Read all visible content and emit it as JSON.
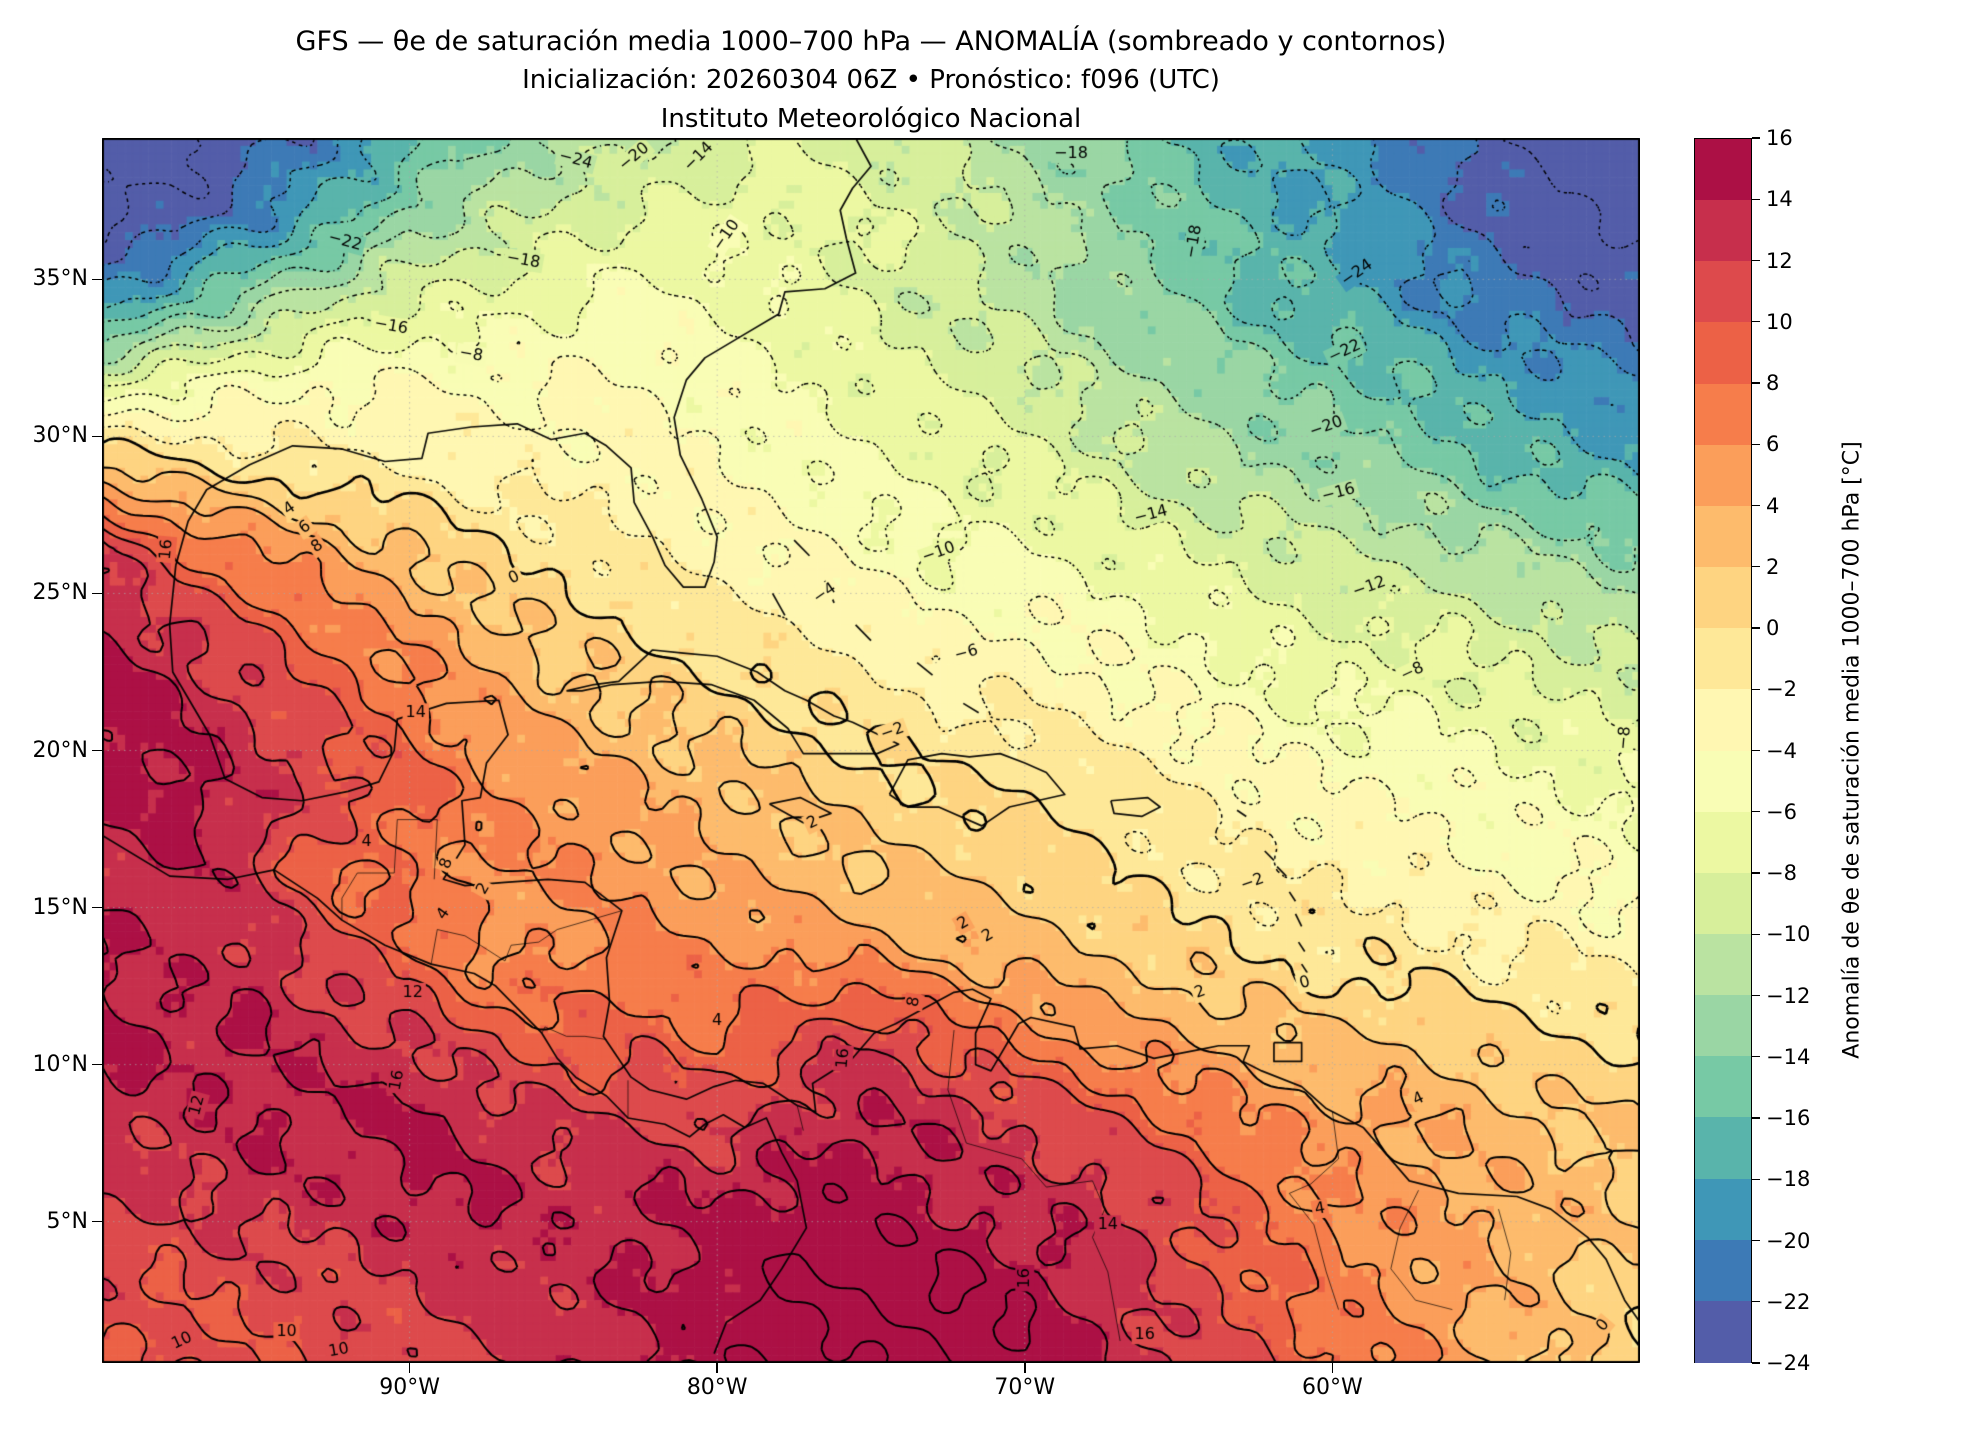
{
  "header": {
    "title_line1": "GFS — θe de saturación media 1000–700 hPa — ANOMALÍA (sombreado y contornos)",
    "title_line2": "Inicialización: 20260304 06Z   •   Pronóstico: f096 (UTC)",
    "title_line3": "Instituto Meteorológico Nacional"
  },
  "axes": {
    "lon_range": [
      -100,
      -50
    ],
    "lat_range": [
      0.5,
      39.5
    ],
    "x_ticks": [
      {
        "value": -90,
        "label": "90°W"
      },
      {
        "value": -80,
        "label": "80°W"
      },
      {
        "value": -70,
        "label": "70°W"
      },
      {
        "value": -60,
        "label": "60°W"
      }
    ],
    "y_ticks": [
      {
        "value": 5,
        "label": "5°N"
      },
      {
        "value": 10,
        "label": "10°N"
      },
      {
        "value": 15,
        "label": "15°N"
      },
      {
        "value": 20,
        "label": "20°N"
      },
      {
        "value": 25,
        "label": "25°N"
      },
      {
        "value": 30,
        "label": "30°N"
      },
      {
        "value": 35,
        "label": "35°N"
      }
    ],
    "grid_lines": {
      "lats": [
        5,
        10,
        15,
        20,
        25,
        30,
        35
      ],
      "lons": [
        -90,
        -80,
        -70,
        -60
      ]
    }
  },
  "colorbar": {
    "min": -24,
    "max": 16,
    "step": 2,
    "tick_values": [
      16,
      14,
      12,
      10,
      8,
      6,
      4,
      2,
      0,
      -2,
      -4,
      -6,
      -8,
      -10,
      -12,
      -14,
      -16,
      -18,
      -20,
      -22,
      -24
    ],
    "label": "Anomalía de θe de saturación media 1000–700 hPa [°C]",
    "colormap_anchors": [
      "#5e4fa2",
      "#3288bd",
      "#66c2a5",
      "#abdda4",
      "#e6f598",
      "#ffffbf",
      "#fee08b",
      "#fdae61",
      "#f46d43",
      "#d53e4f",
      "#9e0142"
    ]
  },
  "chart_data": {
    "type": "heatmap",
    "title": "GFS — θe de saturación media 1000–700 hPa — ANOMALÍA (sombreado y contornos)",
    "units": "°C",
    "value_range": [
      -24,
      16
    ],
    "contour_levels": {
      "min": -24,
      "max": 16,
      "step": 2,
      "negative_style": "dotted",
      "zero_positive_style": "solid"
    },
    "grid_lons": [
      -100,
      -97.5,
      -95,
      -92.5,
      -90,
      -87.5,
      -85,
      -82.5,
      -80,
      -77.5,
      -75,
      -72.5,
      -70,
      -67.5,
      -65,
      -62.5,
      -60,
      -57.5,
      -55,
      -52.5,
      -50
    ],
    "grid_lats": [
      39.5,
      36.9,
      34.3,
      31.7,
      29.1,
      26.5,
      23.9,
      21.3,
      18.7,
      16.1,
      13.5,
      10.9,
      8.3,
      5.7,
      3.1,
      0.5
    ],
    "anomaly_values": [
      [
        -26,
        -25,
        -23,
        -20,
        -17,
        -14,
        -12,
        -10,
        -9,
        -8,
        -9,
        -10,
        -12,
        -14,
        -16,
        -18,
        -19,
        -21,
        -23,
        -25,
        -26
      ],
      [
        -24,
        -23,
        -20,
        -17,
        -13,
        -11,
        -9,
        -8,
        -7,
        -7,
        -8,
        -9,
        -11,
        -13,
        -15,
        -17,
        -18,
        -20,
        -22,
        -24,
        -25
      ],
      [
        -20,
        -16,
        -13,
        -10,
        -8,
        -7,
        -6,
        -5,
        -6,
        -7,
        -8,
        -10,
        -11,
        -13,
        -14,
        -16,
        -17,
        -19,
        -21,
        -22,
        -23
      ],
      [
        -8,
        -6,
        -5,
        -4,
        -4,
        -4,
        -4,
        -4,
        -5,
        -6,
        -7,
        -8,
        -9,
        -11,
        -12,
        -14,
        -15,
        -16,
        -18,
        -19,
        -20
      ],
      [
        2,
        0,
        -1,
        -2,
        -2,
        -3,
        -3,
        -3,
        -4,
        -5,
        -6,
        -7,
        -8,
        -9,
        -11,
        -12,
        -13,
        -14,
        -16,
        -17,
        -18
      ],
      [
        12,
        8,
        6,
        4,
        2,
        0,
        -1,
        -2,
        -3,
        -4,
        -5,
        -6,
        -6,
        -7,
        -8,
        -9,
        -10,
        -11,
        -12,
        -13,
        -14
      ],
      [
        14,
        12,
        10,
        7,
        5,
        3,
        1,
        0,
        -1,
        -2,
        -3,
        -4,
        -4,
        -5,
        -6,
        -7,
        -8,
        -8,
        -9,
        -10,
        -11
      ],
      [
        16,
        14,
        12,
        10,
        7,
        5,
        3,
        2,
        1,
        0,
        -1,
        -2,
        -2,
        -3,
        -4,
        -5,
        -6,
        -6,
        -7,
        -8,
        -8
      ],
      [
        14,
        15,
        13,
        11,
        9,
        6,
        5,
        4,
        3,
        2,
        1,
        0,
        0,
        -1,
        -2,
        -3,
        -4,
        -4,
        -5,
        -6,
        -6
      ],
      [
        13,
        14,
        12,
        8,
        7,
        6,
        6,
        5,
        4,
        3,
        2,
        2,
        1,
        0,
        -1,
        -2,
        -2,
        -3,
        -4,
        -4,
        -5
      ],
      [
        14,
        13,
        13,
        11,
        9,
        5,
        6,
        7,
        6,
        6,
        5,
        4,
        3,
        2,
        1,
        0,
        -1,
        -1,
        -2,
        -2,
        -3
      ],
      [
        15,
        14,
        14,
        13,
        12,
        10,
        9,
        9,
        8,
        10,
        12,
        9,
        7,
        5,
        4,
        3,
        2,
        2,
        1,
        0,
        0
      ],
      [
        13,
        13,
        14,
        14,
        15,
        13,
        12,
        12,
        11,
        13,
        14,
        13,
        12,
        10,
        8,
        6,
        5,
        4,
        3,
        2,
        2
      ],
      [
        12,
        12,
        13,
        13,
        14,
        14,
        13,
        14,
        14,
        15,
        15,
        14,
        13,
        13,
        11,
        8,
        6,
        5,
        4,
        3,
        2
      ],
      [
        11,
        10,
        11,
        11,
        12,
        13,
        13,
        14,
        15,
        16,
        16,
        16,
        15,
        13,
        11,
        9,
        7,
        5,
        4,
        2,
        1
      ],
      [
        10,
        10,
        10,
        11,
        11,
        12,
        13,
        14,
        15,
        16,
        16,
        16,
        16,
        14,
        12,
        10,
        8,
        6,
        4,
        2,
        0
      ]
    ],
    "contour_labels": [
      {
        "v": -24,
        "lon": -84.6,
        "lat": 38.8,
        "rot": 15
      },
      {
        "v": -20,
        "lon": -82.7,
        "lat": 38.9,
        "rot": -40
      },
      {
        "v": -14,
        "lon": -80.6,
        "lat": 38.9,
        "rot": -45
      },
      {
        "v": -18,
        "lon": -68.5,
        "lat": 39.0,
        "rot": 0
      },
      {
        "v": -22,
        "lon": -92.1,
        "lat": 36.2,
        "rot": 15
      },
      {
        "v": -10,
        "lon": -79.7,
        "lat": 36.4,
        "rot": -55
      },
      {
        "v": -18,
        "lon": -64.5,
        "lat": 36.2,
        "rot": -80
      },
      {
        "v": -24,
        "lon": -59.2,
        "lat": 35.2,
        "rot": -35
      },
      {
        "v": -18,
        "lon": -86.3,
        "lat": 35.6,
        "rot": 10
      },
      {
        "v": -16,
        "lon": -90.6,
        "lat": 33.5,
        "rot": 10
      },
      {
        "v": -8,
        "lon": -88.0,
        "lat": 32.6,
        "rot": 10
      },
      {
        "v": -22,
        "lon": -59.6,
        "lat": 32.7,
        "rot": -25
      },
      {
        "v": -20,
        "lon": -60.2,
        "lat": 30.3,
        "rot": -20
      },
      {
        "v": -16,
        "lon": -59.8,
        "lat": 28.2,
        "rot": -15
      },
      {
        "v": -14,
        "lon": -65.9,
        "lat": 27.5,
        "rot": -15
      },
      {
        "v": -10,
        "lon": -72.8,
        "lat": 26.3,
        "rot": -20
      },
      {
        "v": -12,
        "lon": -58.8,
        "lat": 25.2,
        "rot": -20
      },
      {
        "v": -4,
        "lon": -76.5,
        "lat": 25.0,
        "rot": -35
      },
      {
        "v": 0,
        "lon": -86.6,
        "lat": 25.5,
        "rot": -25
      },
      {
        "v": -6,
        "lon": -71.9,
        "lat": 23.1,
        "rot": -15
      },
      {
        "v": -8,
        "lon": -57.4,
        "lat": 22.5,
        "rot": -25
      },
      {
        "v": -8,
        "lon": -50.5,
        "lat": 20.4,
        "rot": -85
      },
      {
        "v": -2,
        "lon": -74.3,
        "lat": 20.6,
        "rot": -20
      },
      {
        "v": 16,
        "lon": -97.9,
        "lat": 26.4,
        "rot": -85
      },
      {
        "v": 4,
        "lon": -93.9,
        "lat": 27.7,
        "rot": -35
      },
      {
        "v": 6,
        "lon": -93.4,
        "lat": 27.1,
        "rot": -35
      },
      {
        "v": 8,
        "lon": -93.0,
        "lat": 26.5,
        "rot": -35
      },
      {
        "v": 14,
        "lon": -89.8,
        "lat": 21.2,
        "rot": 0
      },
      {
        "v": 4,
        "lon": -91.4,
        "lat": 17.1,
        "rot": 0
      },
      {
        "v": 8,
        "lon": -88.8,
        "lat": 16.4,
        "rot": -70
      },
      {
        "v": 2,
        "lon": -87.6,
        "lat": 15.6,
        "rot": -60
      },
      {
        "v": 4,
        "lon": -88.9,
        "lat": 14.8,
        "rot": -55
      },
      {
        "v": 12,
        "lon": -89.9,
        "lat": 12.3,
        "rot": 0
      },
      {
        "v": 16,
        "lon": -90.4,
        "lat": 9.5,
        "rot": -80
      },
      {
        "v": 12,
        "lon": -96.9,
        "lat": 8.7,
        "rot": -75
      },
      {
        "v": 2,
        "lon": -76.9,
        "lat": 17.7,
        "rot": -25
      },
      {
        "v": 2,
        "lon": -72.0,
        "lat": 14.5,
        "rot": -30
      },
      {
        "v": 2,
        "lon": -71.2,
        "lat": 14.1,
        "rot": -30
      },
      {
        "v": 4,
        "lon": -80.0,
        "lat": 11.4,
        "rot": 0
      },
      {
        "v": 8,
        "lon": -73.6,
        "lat": 12.0,
        "rot": -80
      },
      {
        "v": 16,
        "lon": -75.9,
        "lat": 10.2,
        "rot": -85
      },
      {
        "v": 14,
        "lon": -67.3,
        "lat": 4.9,
        "rot": 0
      },
      {
        "v": 4,
        "lon": -60.4,
        "lat": 5.4,
        "rot": -10
      },
      {
        "v": 4,
        "lon": -57.2,
        "lat": 8.9,
        "rot": -25
      },
      {
        "v": 16,
        "lon": -70.0,
        "lat": 3.2,
        "rot": -90
      },
      {
        "v": 16,
        "lon": -66.1,
        "lat": 1.4,
        "rot": 0
      },
      {
        "v": 10,
        "lon": -97.4,
        "lat": 1.2,
        "rot": -25
      },
      {
        "v": 10,
        "lon": -94.0,
        "lat": 1.5,
        "rot": 0
      },
      {
        "v": 10,
        "lon": -92.3,
        "lat": 0.9,
        "rot": -10
      },
      {
        "v": 0,
        "lon": -51.2,
        "lat": 1.7,
        "rot": -50
      },
      {
        "v": -2,
        "lon": -62.6,
        "lat": 15.8,
        "rot": -20
      },
      {
        "v": 2,
        "lon": -64.3,
        "lat": 12.3,
        "rot": -20
      },
      {
        "v": 0,
        "lon": -60.9,
        "lat": 12.6,
        "rot": -15
      }
    ]
  }
}
